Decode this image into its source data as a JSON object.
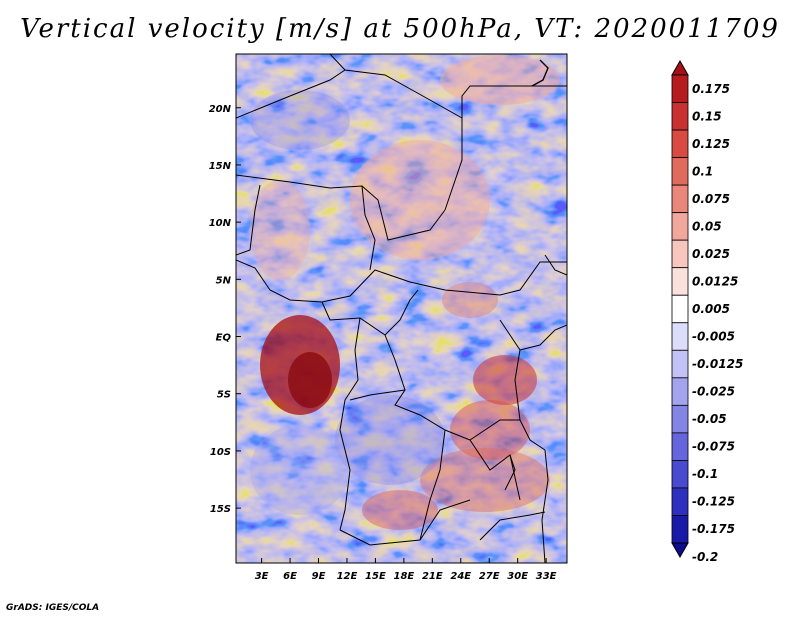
{
  "chart_data": {
    "type": "heatmap",
    "title": "Vertical velocity [m/s] at 500hPa, VT: 2020011709",
    "x_ticks": [
      "3E",
      "6E",
      "9E",
      "12E",
      "15E",
      "18E",
      "21E",
      "24E",
      "27E",
      "30E",
      "33E"
    ],
    "x_values": [
      3,
      6,
      9,
      12,
      15,
      18,
      21,
      24,
      27,
      30,
      33
    ],
    "xlim": [
      0.3,
      35.2
    ],
    "y_ticks": [
      "20N",
      "15N",
      "10N",
      "5N",
      "EQ",
      "5S",
      "10S",
      "15S"
    ],
    "y_values": [
      20,
      15,
      10,
      5,
      0,
      -5,
      -10,
      -15
    ],
    "ylim": [
      -19.8,
      24.7
    ],
    "colorbar": {
      "levels": [
        "0.175",
        "0.15",
        "0.125",
        "0.1",
        "0.075",
        "0.05",
        "0.025",
        "0.0125",
        "0.005",
        "-0.005",
        "-0.0125",
        "-0.025",
        "-0.05",
        "-0.075",
        "-0.1",
        "-0.125",
        "-0.175",
        "-0.2"
      ],
      "colors": [
        "#a50f15",
        "#b51b1f",
        "#c8312f",
        "#d94a40",
        "#e06b5c",
        "#e9887a",
        "#f2a79c",
        "#f7c6bd",
        "#fbe2dc",
        "#ffffff",
        "#dcdcfb",
        "#c2c2f5",
        "#a3a3ee",
        "#8585e6",
        "#6666dc",
        "#4a4ad0",
        "#3030c0",
        "#1a1aa8",
        "#0d0d8c"
      ]
    },
    "credit": "GrADS: IGES/COLA"
  }
}
